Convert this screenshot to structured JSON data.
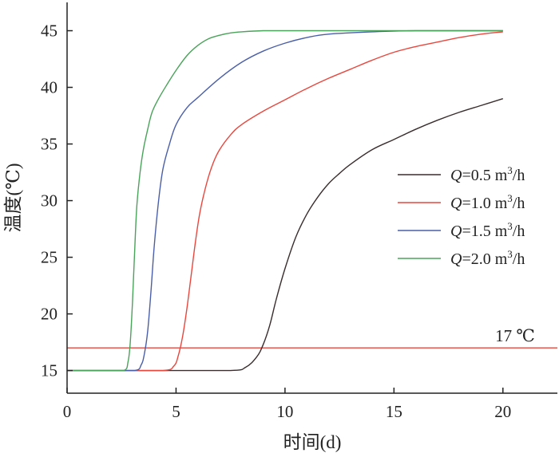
{
  "chart_data": {
    "type": "line",
    "xlabel": "时间(d)",
    "ylabel": "温度(℃)",
    "xlim": [
      0,
      22.5
    ],
    "ylim": [
      13,
      47.5
    ],
    "xticks": [
      0,
      5,
      10,
      15,
      20
    ],
    "yticks": [
      15,
      20,
      25,
      30,
      35,
      40,
      45
    ],
    "grid": false,
    "legend_position": "right-middle",
    "series": [
      {
        "name": "Q=0.5 m³/h",
        "legend": {
          "q": "Q",
          "rest": "=0.5 m",
          "sup": "3",
          "unit": "/h"
        },
        "color": "#3a2d2d",
        "x": [
          0,
          7.5,
          8.2,
          8.7,
          9.0,
          9.3,
          9.6,
          10.0,
          10.5,
          11.0,
          11.5,
          12.0,
          12.5,
          13.0,
          14.0,
          15.0,
          16.0,
          17.0,
          18.0,
          19.0,
          20.0
        ],
        "y": [
          15,
          15,
          15.3,
          16.2,
          17.3,
          19.0,
          21.3,
          24.0,
          26.8,
          28.8,
          30.3,
          31.5,
          32.4,
          33.2,
          34.5,
          35.4,
          36.3,
          37.1,
          37.8,
          38.4,
          39.0
        ]
      },
      {
        "name": "Q=1.0 m³/h",
        "legend": {
          "q": "Q",
          "rest": "=1.0 m",
          "sup": "3",
          "unit": "/h"
        },
        "color": "#e8473e",
        "x": [
          0,
          4.4,
          4.9,
          5.1,
          5.3,
          5.5,
          5.7,
          5.9,
          6.1,
          6.4,
          6.7,
          7.0,
          7.5,
          8.0,
          9.0,
          10.0,
          11.0,
          12.0,
          13.0,
          14.0,
          15.0,
          16.0,
          17.0,
          18.0,
          19.0,
          20.0
        ],
        "y": [
          15,
          15,
          15.4,
          16.3,
          18.0,
          20.5,
          23.5,
          26.5,
          29.0,
          31.5,
          33.3,
          34.5,
          35.8,
          36.7,
          37.9,
          38.9,
          39.9,
          40.8,
          41.6,
          42.4,
          43.1,
          43.6,
          44.0,
          44.4,
          44.7,
          44.9
        ]
      },
      {
        "name": "Q=1.5 m³/h",
        "legend": {
          "q": "Q",
          "rest": "=1.5 m",
          "sup": "3",
          "unit": "/h"
        },
        "color": "#4a5fa8",
        "x": [
          0,
          3.1,
          3.4,
          3.55,
          3.7,
          3.85,
          4.0,
          4.2,
          4.4,
          4.7,
          5.0,
          5.5,
          6.0,
          7.0,
          8.0,
          9.0,
          10.0,
          11.0,
          12.0,
          14.0,
          16.0,
          20.0
        ],
        "y": [
          15,
          15,
          15.5,
          16.5,
          18.5,
          22.0,
          26.0,
          30.0,
          32.8,
          35.0,
          36.7,
          38.2,
          39.1,
          40.8,
          42.2,
          43.2,
          43.9,
          44.4,
          44.7,
          44.9,
          45.0,
          45.0
        ]
      },
      {
        "name": "Q=2.0 m³/h",
        "legend": {
          "q": "Q",
          "rest": "=2.0 m",
          "sup": "3",
          "unit": "/h"
        },
        "color": "#4aa35a",
        "x": [
          0,
          2.6,
          2.8,
          2.9,
          3.0,
          3.1,
          3.2,
          3.35,
          3.5,
          3.7,
          3.9,
          4.2,
          4.6,
          5.0,
          5.5,
          6.0,
          6.5,
          7.0,
          7.5,
          8.0,
          9.0,
          10.0,
          12.0,
          20.0
        ],
        "y": [
          15,
          15,
          15.8,
          17.5,
          21.0,
          25.5,
          29.5,
          32.5,
          34.5,
          36.3,
          37.8,
          39.0,
          40.3,
          41.5,
          42.8,
          43.7,
          44.3,
          44.6,
          44.8,
          44.9,
          45.0,
          45.0,
          45.0,
          45.0
        ]
      }
    ],
    "reference_lines": [
      {
        "y": 17,
        "label": "17 ℃",
        "color": "#e8473e"
      }
    ]
  }
}
